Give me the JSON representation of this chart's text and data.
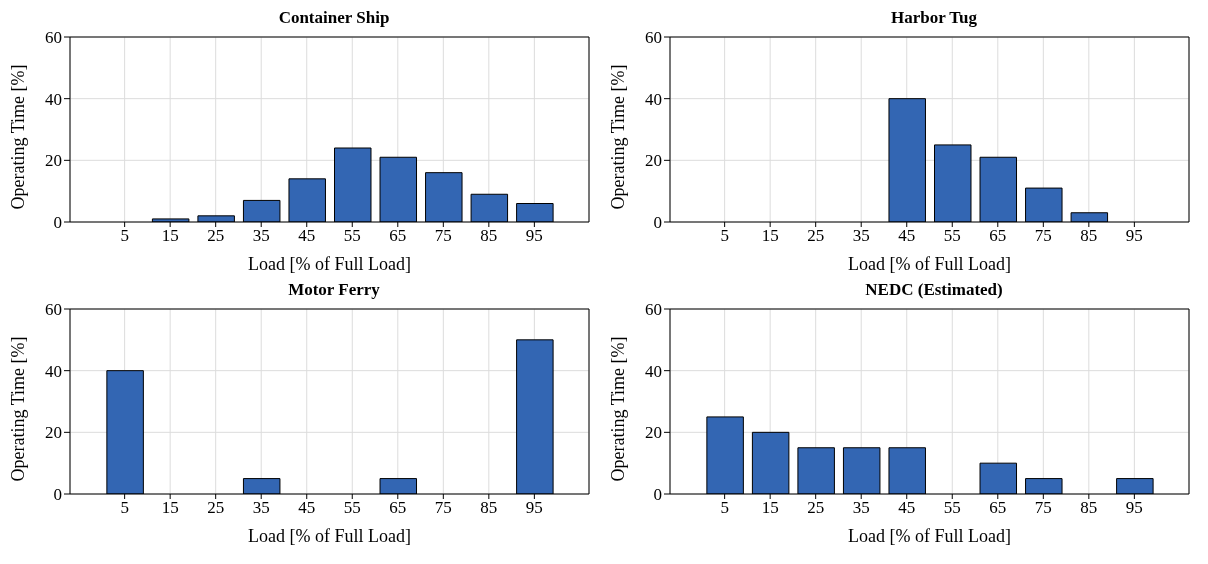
{
  "chart_data": [
    {
      "type": "bar",
      "title": "Container Ship",
      "xlabel": "Load [% of Full Load]",
      "ylabel": "Operating Time [%]",
      "x": [
        5,
        15,
        25,
        35,
        45,
        55,
        65,
        75,
        85,
        95
      ],
      "values": [
        0,
        1,
        2,
        7,
        14,
        24,
        21,
        16,
        9,
        6
      ],
      "color": "#3366b3",
      "xlim": [
        -7,
        107
      ],
      "xticks": [
        5,
        15,
        25,
        35,
        45,
        55,
        65,
        75,
        85,
        95
      ],
      "ylim": [
        0,
        60
      ],
      "yticks": [
        0,
        20,
        40,
        60
      ],
      "grid": true
    },
    {
      "type": "bar",
      "title": "Harbor Tug",
      "xlabel": "Load [% of Full Load]",
      "ylabel": "Operating Time [%]",
      "x": [
        5,
        15,
        25,
        35,
        45,
        55,
        65,
        75,
        85,
        95
      ],
      "values": [
        0,
        0,
        0,
        0,
        40,
        25,
        21,
        11,
        3,
        0
      ],
      "color": "#3366b3",
      "xlim": [
        -7,
        107
      ],
      "xticks": [
        5,
        15,
        25,
        35,
        45,
        55,
        65,
        75,
        85,
        95
      ],
      "ylim": [
        0,
        60
      ],
      "yticks": [
        0,
        20,
        40,
        60
      ],
      "grid": true
    },
    {
      "type": "bar",
      "title": "Motor Ferry",
      "xlabel": "Load [% of Full Load]",
      "ylabel": "Operating Time [%]",
      "x": [
        5,
        15,
        25,
        35,
        45,
        55,
        65,
        75,
        85,
        95
      ],
      "values": [
        40,
        0,
        0,
        5,
        0,
        0,
        5,
        0,
        0,
        50
      ],
      "color": "#3366b3",
      "xlim": [
        -7,
        107
      ],
      "xticks": [
        5,
        15,
        25,
        35,
        45,
        55,
        65,
        75,
        85,
        95
      ],
      "ylim": [
        0,
        60
      ],
      "yticks": [
        0,
        20,
        40,
        60
      ],
      "grid": true
    },
    {
      "type": "bar",
      "title": "NEDC (Estimated)",
      "xlabel": "Load [% of Full Load]",
      "ylabel": "Operating Time [%]",
      "x": [
        5,
        15,
        25,
        35,
        45,
        55,
        65,
        75,
        85,
        95
      ],
      "values": [
        25,
        20,
        15,
        15,
        15,
        0,
        10,
        5,
        0,
        5
      ],
      "color": "#3366b3",
      "xlim": [
        -7,
        107
      ],
      "xticks": [
        5,
        15,
        25,
        35,
        45,
        55,
        65,
        75,
        85,
        95
      ],
      "ylim": [
        0,
        60
      ],
      "yticks": [
        0,
        20,
        40,
        60
      ],
      "grid": true
    }
  ]
}
